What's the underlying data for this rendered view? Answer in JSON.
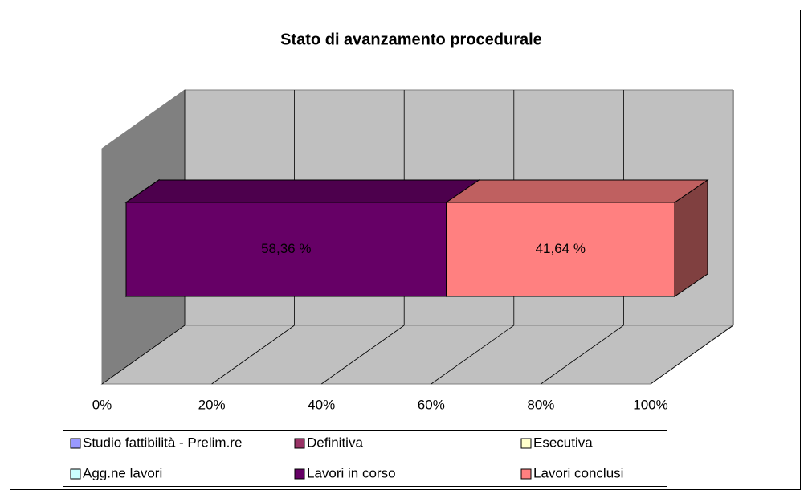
{
  "chart_data": {
    "type": "bar3d_stacked_percent",
    "title": "Stato di avanzamento procedurale",
    "categories": [
      null
    ],
    "series": [
      {
        "name": "Studio fattibilità - Prelim.re",
        "color": "#9999ff",
        "values": [
          0
        ]
      },
      {
        "name": "Definitiva",
        "color": "#993366",
        "values": [
          0
        ]
      },
      {
        "name": "Esecutiva",
        "color": "#ffffcc",
        "values": [
          0
        ]
      },
      {
        "name": "Agg.ne lavori",
        "color": "#ccffff",
        "values": [
          0
        ]
      },
      {
        "name": "Lavori in corso",
        "color": "#660066",
        "values": [
          58.36
        ],
        "value_labels": [
          "58,36 %"
        ]
      },
      {
        "name": "Lavori conclusi",
        "color": "#ff8080",
        "values": [
          41.64
        ],
        "value_labels": [
          "41,64 %"
        ]
      }
    ],
    "xlim": [
      0,
      100
    ],
    "xticks": [
      {
        "value": 0,
        "label": "0%"
      },
      {
        "value": 20,
        "label": "20%"
      },
      {
        "value": 40,
        "label": "40%"
      },
      {
        "value": 60,
        "label": "60%"
      },
      {
        "value": 80,
        "label": "80%"
      },
      {
        "value": 100,
        "label": "100%"
      }
    ],
    "grid": true
  }
}
